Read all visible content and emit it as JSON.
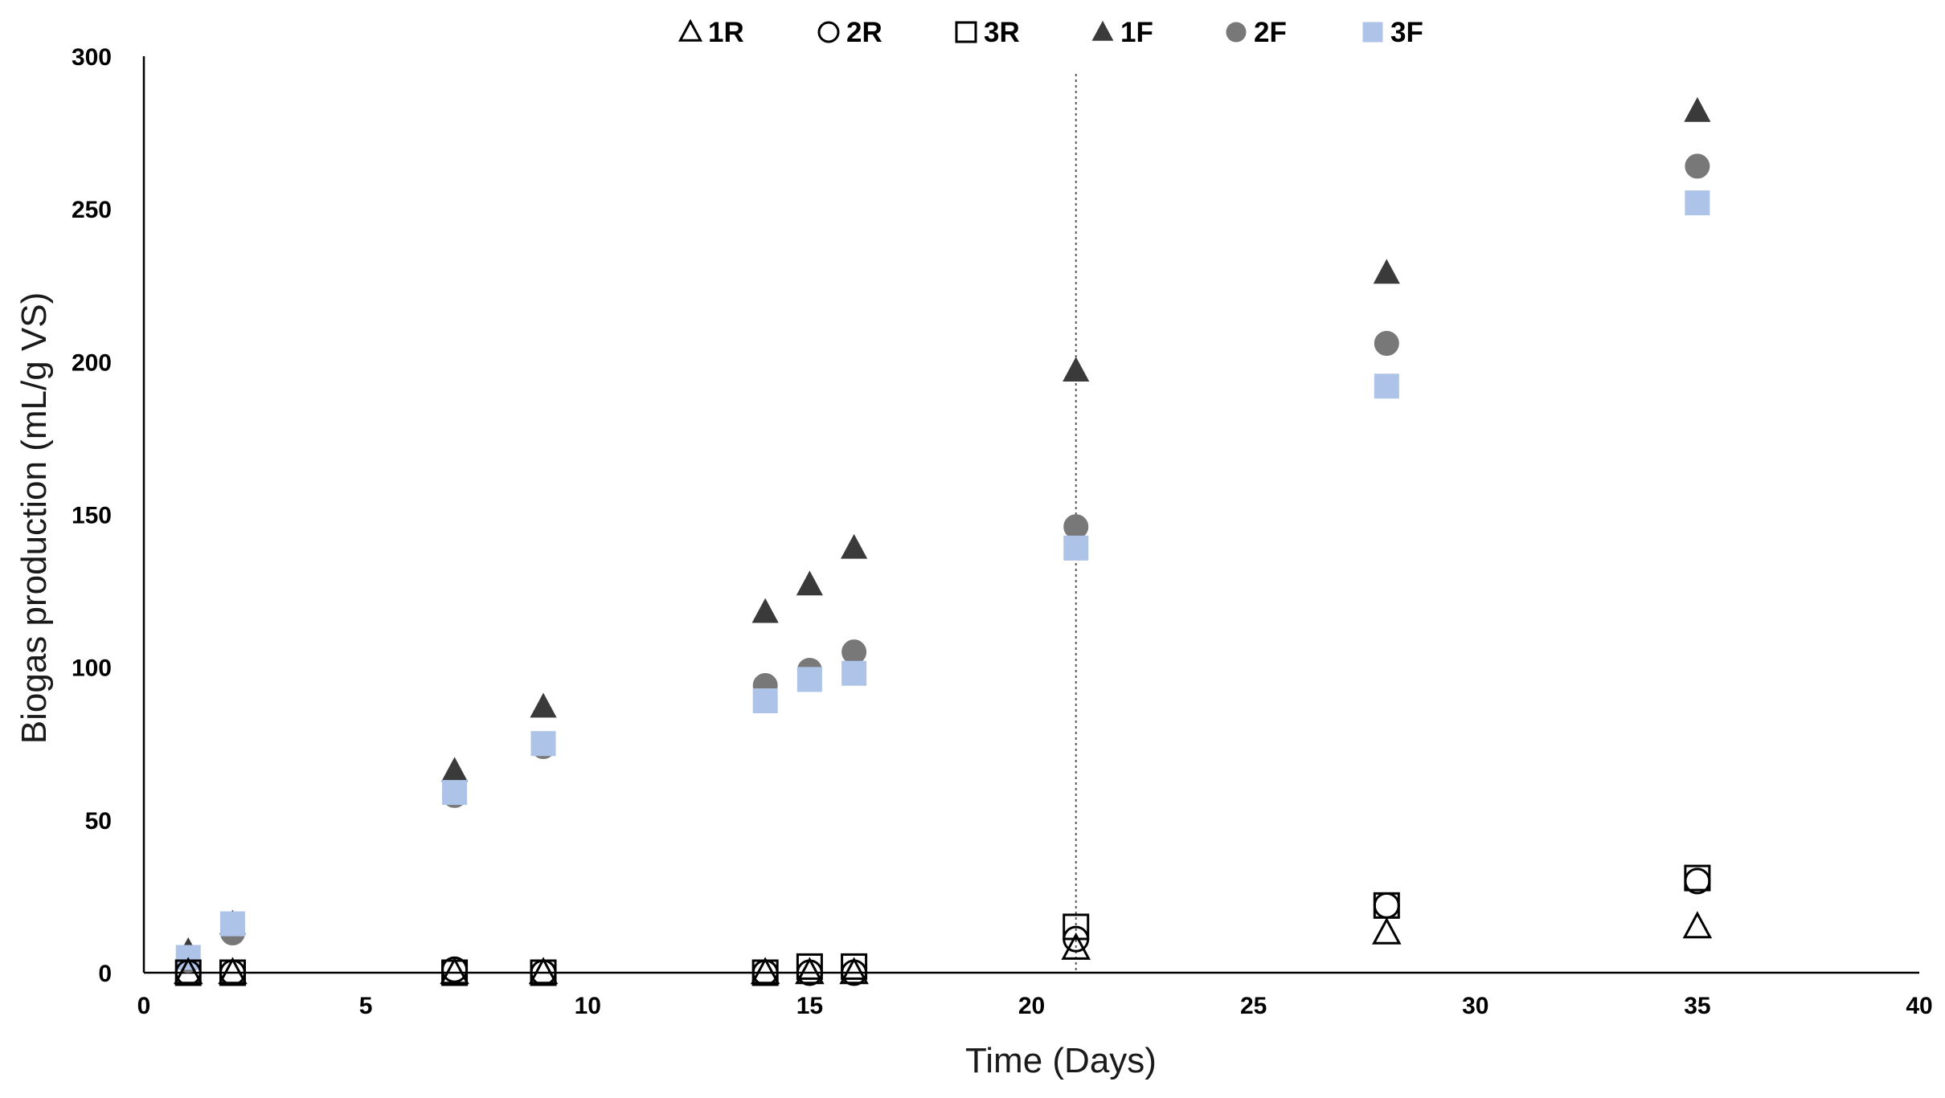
{
  "chart_data": {
    "type": "scatter",
    "title": "",
    "xlabel": "Time (Days)",
    "ylabel": "Biogas production (mL/g VS)",
    "xlim": [
      0,
      40
    ],
    "ylim": [
      0,
      300
    ],
    "xticks": [
      0,
      5,
      10,
      15,
      20,
      25,
      30,
      35,
      40
    ],
    "yticks": [
      0,
      50,
      100,
      150,
      200,
      250,
      300
    ],
    "grid": false,
    "legend_position": "top",
    "reference_line": {
      "x": 21,
      "style": "dotted"
    },
    "series": [
      {
        "name": "1R",
        "marker": "triangle",
        "filled": false,
        "color": "#000000",
        "points": [
          [
            1,
            0
          ],
          [
            2,
            0
          ],
          [
            7,
            0
          ],
          [
            9,
            0
          ],
          [
            14,
            0
          ],
          [
            15,
            0
          ],
          [
            16,
            0
          ],
          [
            21,
            8
          ],
          [
            28,
            13
          ],
          [
            35,
            15
          ]
        ]
      },
      {
        "name": "2R",
        "marker": "circle",
        "filled": false,
        "color": "#000000",
        "points": [
          [
            1,
            0
          ],
          [
            2,
            0
          ],
          [
            7,
            1
          ],
          [
            9,
            0
          ],
          [
            14,
            0
          ],
          [
            15,
            0
          ],
          [
            16,
            0
          ],
          [
            21,
            11
          ],
          [
            28,
            22
          ],
          [
            35,
            30
          ]
        ]
      },
      {
        "name": "3R",
        "marker": "square",
        "filled": false,
        "color": "#000000",
        "points": [
          [
            1,
            0
          ],
          [
            2,
            0
          ],
          [
            7,
            0
          ],
          [
            9,
            0
          ],
          [
            14,
            0
          ],
          [
            15,
            2
          ],
          [
            16,
            2
          ],
          [
            21,
            15
          ],
          [
            28,
            22
          ],
          [
            35,
            31
          ]
        ]
      },
      {
        "name": "1F",
        "marker": "triangle",
        "filled": true,
        "color": "#3a3a3a",
        "points": [
          [
            1,
            7
          ],
          [
            2,
            16
          ],
          [
            7,
            66
          ],
          [
            9,
            87
          ],
          [
            14,
            118
          ],
          [
            15,
            127
          ],
          [
            16,
            139
          ],
          [
            21,
            197
          ],
          [
            28,
            229
          ],
          [
            35,
            282
          ]
        ]
      },
      {
        "name": "2F",
        "marker": "circle",
        "filled": true,
        "color": "#787878",
        "points": [
          [
            1,
            4
          ],
          [
            2,
            13
          ],
          [
            7,
            58
          ],
          [
            9,
            74
          ],
          [
            14,
            94
          ],
          [
            15,
            99
          ],
          [
            16,
            105
          ],
          [
            21,
            146
          ],
          [
            28,
            206
          ],
          [
            35,
            264
          ]
        ]
      },
      {
        "name": "3F",
        "marker": "square",
        "filled": true,
        "color": "#aec3e8",
        "points": [
          [
            1,
            5
          ],
          [
            2,
            16
          ],
          [
            7,
            59
          ],
          [
            9,
            75
          ],
          [
            14,
            89
          ],
          [
            15,
            96
          ],
          [
            16,
            98
          ],
          [
            21,
            139
          ],
          [
            28,
            192
          ],
          [
            35,
            252
          ]
        ]
      }
    ]
  }
}
